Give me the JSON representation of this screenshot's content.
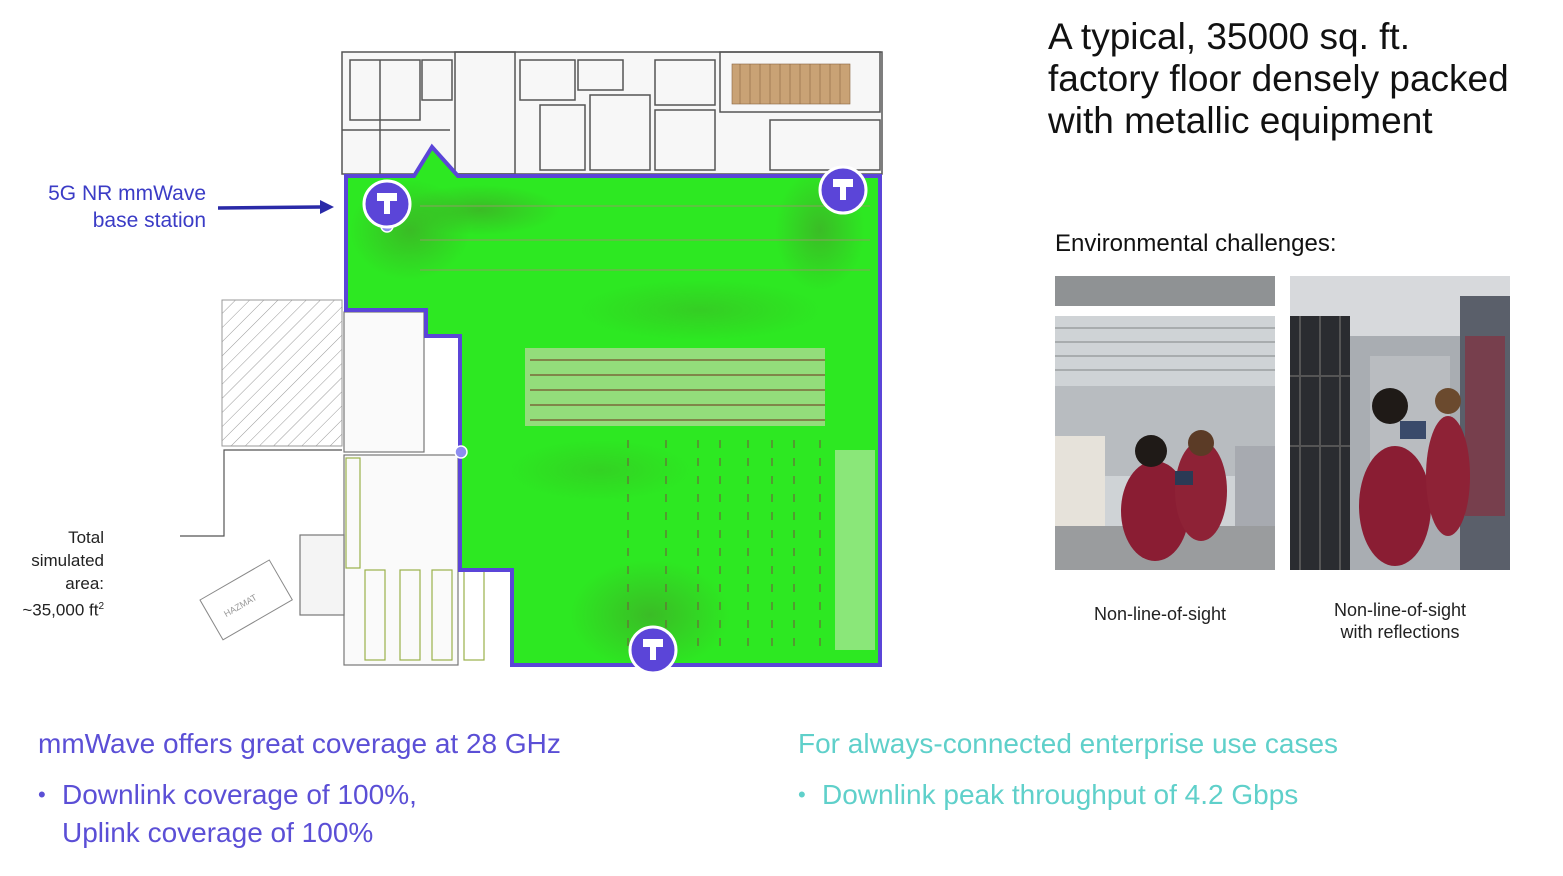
{
  "headline": "A typical, 35000 sq. ft. factory floor densely packed with metallic equipment",
  "base_station_label": {
    "line1": "5G NR mmWave",
    "line2": "base station"
  },
  "area_label": {
    "line1": "Total",
    "line2": "simulated",
    "line3": "area:",
    "line4": "~35,000 ft",
    "superscript": "2"
  },
  "hazmat_label": "HAZMAT",
  "environmental": {
    "title": "Environmental challenges:",
    "photos": [
      {
        "caption_line1": "Non-line-of-sight",
        "caption_line2": ""
      },
      {
        "caption_line1": "Non-line-of-sight",
        "caption_line2": "with reflections"
      }
    ]
  },
  "left_section": {
    "heading": "mmWave offers great coverage at 28 GHz",
    "bullets": [
      {
        "line1": "Downlink coverage of 100%,",
        "line2": "Uplink coverage of 100%"
      }
    ]
  },
  "right_section": {
    "heading": "For always-connected enterprise use cases",
    "bullets": [
      {
        "line1": "Downlink peak throughput of 4.2 Gbps"
      }
    ]
  },
  "colors": {
    "base_station": "#5b45d8",
    "coverage": "#22e81c",
    "left_text": "#5b4fd6",
    "right_text": "#5fd0ca"
  },
  "icons": [
    "base-station-icon",
    "arrow-icon"
  ]
}
